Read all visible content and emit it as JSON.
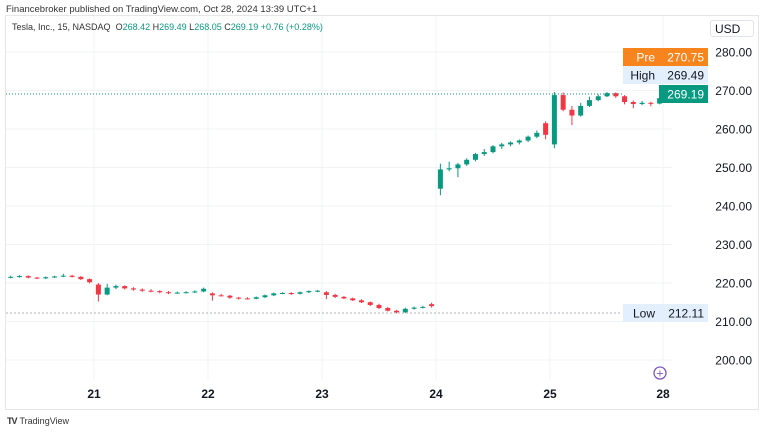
{
  "publisher_line": "Financebroker published on TradingView.com, Oct 28, 2024 13:39 UTC+1",
  "legend": {
    "symbol": "Tesla, Inc., 15, NASDAQ",
    "o_label": "O",
    "o": "268.42",
    "h_label": "H",
    "h": "269.49",
    "l_label": "L",
    "l": "268.05",
    "c_label": "C",
    "c": "269.19",
    "change": "+0.76 (+0.28%)"
  },
  "currency": "USD",
  "badges": {
    "pre": {
      "label": "Pre",
      "value": "270.75",
      "color": "#f7841d"
    },
    "high": {
      "label": "High",
      "value": "269.49"
    },
    "last": {
      "value": "269.19",
      "color": "#089981"
    },
    "low": {
      "label": "Low",
      "value": "212.11"
    }
  },
  "footer": {
    "brand": "TradingView"
  },
  "chart_data": {
    "type": "candlestick",
    "interval": "15",
    "colors": {
      "up": "#089981",
      "down": "#f23645"
    },
    "y_ticks": [
      "280.00",
      "270.00",
      "260.00",
      "250.00",
      "240.00",
      "230.00",
      "220.00",
      "210.00",
      "200.00"
    ],
    "ylim": [
      195,
      285
    ],
    "x_labels": [
      "21",
      "22",
      "23",
      "24",
      "25",
      "28"
    ],
    "sessions": [
      {
        "day": "18",
        "candles": [
          [
            221.4,
            221.9,
            221.2,
            221.6
          ],
          [
            221.6,
            222.0,
            221.4,
            221.8
          ],
          [
            221.8,
            222.0,
            221.2,
            221.4
          ],
          [
            221.4,
            221.6,
            221.0,
            221.2
          ],
          [
            221.2,
            221.7,
            221.0,
            221.5
          ],
          [
            221.5,
            221.9,
            221.3,
            221.7
          ],
          [
            221.7,
            222.4,
            221.5,
            221.9
          ],
          [
            221.9,
            222.1,
            221.4,
            221.6
          ],
          [
            221.6,
            221.8,
            220.8,
            221.0
          ],
          [
            221.0,
            221.2,
            219.9,
            220.2
          ]
        ]
      },
      {
        "day": "21",
        "candles": [
          [
            219.6,
            220.0,
            215.2,
            217.0
          ],
          [
            217.0,
            219.8,
            216.8,
            218.8
          ],
          [
            218.8,
            219.6,
            218.4,
            219.2
          ],
          [
            219.2,
            219.4,
            218.3,
            218.6
          ],
          [
            218.6,
            218.9,
            218.0,
            218.3
          ],
          [
            218.3,
            218.6,
            217.7,
            218.0
          ],
          [
            218.0,
            218.4,
            217.6,
            217.9
          ],
          [
            217.9,
            218.1,
            217.3,
            217.6
          ],
          [
            217.6,
            217.9,
            217.1,
            217.4
          ],
          [
            217.4,
            217.8,
            217.2,
            217.5
          ],
          [
            217.5,
            217.9,
            217.3,
            217.6
          ],
          [
            217.6,
            218.1,
            217.4,
            217.8
          ],
          [
            217.8,
            218.8,
            217.6,
            218.5
          ]
        ]
      },
      {
        "day": "22",
        "candles": [
          [
            217.3,
            217.6,
            215.4,
            216.8
          ],
          [
            216.8,
            217.2,
            216.5,
            216.7
          ],
          [
            216.7,
            216.9,
            215.9,
            216.2
          ],
          [
            216.2,
            216.4,
            215.7,
            216.0
          ],
          [
            216.0,
            216.3,
            215.7,
            215.9
          ],
          [
            215.9,
            216.5,
            215.8,
            216.3
          ],
          [
            216.3,
            217.0,
            216.1,
            216.8
          ],
          [
            216.8,
            217.5,
            216.6,
            217.3
          ],
          [
            217.3,
            217.6,
            217.1,
            217.4
          ],
          [
            217.4,
            217.6,
            216.9,
            217.2
          ],
          [
            217.2,
            217.8,
            217.0,
            217.6
          ],
          [
            217.6,
            218.1,
            217.4,
            217.9
          ],
          [
            217.9,
            218.2,
            217.6,
            218.0
          ]
        ]
      },
      {
        "day": "23",
        "candles": [
          [
            217.6,
            217.9,
            215.8,
            216.9
          ],
          [
            216.9,
            217.2,
            216.1,
            216.4
          ],
          [
            216.4,
            216.6,
            215.8,
            216.0
          ],
          [
            216.0,
            216.2,
            215.3,
            215.5
          ],
          [
            215.5,
            215.8,
            214.8,
            215.0
          ],
          [
            215.0,
            215.2,
            214.0,
            214.3
          ],
          [
            214.3,
            214.6,
            213.2,
            213.5
          ],
          [
            213.5,
            213.8,
            212.6,
            212.8
          ],
          [
            212.8,
            213.0,
            212.1,
            212.4
          ],
          [
            212.4,
            213.6,
            212.2,
            213.3
          ],
          [
            213.3,
            213.9,
            213.1,
            213.6
          ],
          [
            213.6,
            214.1,
            213.4,
            213.8
          ],
          [
            214.5,
            214.9,
            213.6,
            214.0
          ]
        ]
      },
      {
        "day": "24",
        "candles": [
          [
            244.5,
            251.0,
            242.8,
            249.5
          ],
          [
            249.5,
            251.5,
            249.0,
            249.8
          ],
          [
            249.8,
            251.2,
            247.5,
            250.8
          ],
          [
            250.8,
            252.4,
            250.4,
            252.0
          ],
          [
            252.0,
            253.8,
            251.6,
            253.5
          ],
          [
            253.5,
            254.8,
            253.0,
            254.0
          ],
          [
            254.0,
            255.8,
            253.7,
            255.5
          ],
          [
            255.5,
            256.4,
            254.8,
            256.0
          ],
          [
            256.0,
            256.8,
            255.5,
            256.5
          ],
          [
            256.5,
            257.3,
            256.0,
            257.0
          ],
          [
            257.0,
            258.3,
            256.6,
            258.0
          ],
          [
            258.0,
            259.6,
            257.6,
            259.0
          ],
          [
            261.5,
            262.0,
            257.3,
            258.5
          ]
        ]
      },
      {
        "day": "25",
        "candles": [
          [
            256.0,
            269.6,
            255.0,
            268.8
          ],
          [
            268.8,
            269.5,
            264.6,
            265.0
          ],
          [
            265.0,
            266.0,
            261.0,
            263.5
          ],
          [
            263.5,
            266.8,
            263.2,
            266.0
          ],
          [
            266.0,
            268.4,
            265.7,
            267.5
          ],
          [
            267.5,
            269.0,
            267.2,
            268.5
          ],
          [
            268.5,
            269.6,
            268.3,
            269.3
          ],
          [
            269.3,
            269.5,
            268.1,
            268.5
          ],
          [
            268.5,
            268.8,
            266.4,
            267.0
          ],
          [
            267.0,
            267.4,
            265.4,
            266.5
          ],
          [
            266.5,
            267.3,
            266.2,
            266.8
          ],
          [
            266.8,
            267.1,
            265.9,
            266.6
          ],
          [
            266.6,
            268.4,
            266.4,
            268.0
          ]
        ]
      },
      {
        "day": "28",
        "candles": [
          [
            268.42,
            269.49,
            268.05,
            269.19
          ]
        ]
      }
    ]
  }
}
